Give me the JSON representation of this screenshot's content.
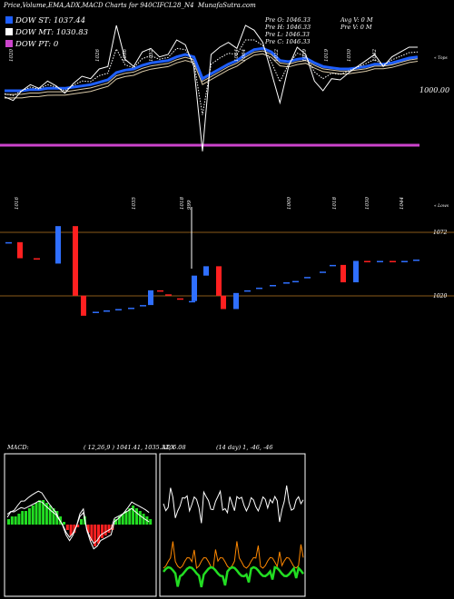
{
  "header": {
    "title": "Price,Volume,EMA,ADX,MACD Charts for 940CIFCL28_N4",
    "site": "MunafaSutra.com"
  },
  "legend": {
    "dow_st": "DOW ST: 1037.44",
    "dow_mt": "DOW MT: 1030.83",
    "dow_pt": "DOW PT: 0"
  },
  "prev_info": {
    "open": "Pre   O: 1046.33",
    "high": "Pre   H: 1046.33",
    "low": "Pre   L: 1046.33",
    "close": "Pre   C: 1046.33",
    "avg_v": "Avg V: 0   M",
    "pre_v": "Pre   V: 0   M"
  },
  "top_price_label": "1000.00",
  "top_right_tag": "« Tops",
  "bottom_right_tag": "« Lows",
  "top_labels": [
    "1020",
    "1026",
    "1036",
    "1052",
    "1064",
    "1064",
    "1022",
    "1019",
    "1019",
    "1030",
    "1042"
  ],
  "low_labels": [
    "1016",
    "1035",
    "1018",
    "999",
    "1000",
    "1018",
    "1030",
    "1044"
  ],
  "candle_levels": [
    "1072",
    "1020"
  ],
  "macd_panel": {
    "title": "MACD:",
    "params": "( 12,26,9 ) 1041.41, 1035.33, 6.08"
  },
  "adx_panel": {
    "title": "ADX",
    "params": "(14  day) 1, -46, -46"
  },
  "colors": {
    "ema_fast": "#1e5fff",
    "ema_lines": "#d9c9a8",
    "price": "#ffffff",
    "pt_line": "#cc44cc",
    "level_line": "#8a5a1a",
    "bull": "#2f6fff",
    "bear": "#ff2020",
    "macd_hist_pos": "#22dd22",
    "macd_hist_neg": "#ff2020",
    "adx_di_minus": "#22dd22",
    "adx_di_plus": "#ff8800"
  },
  "chart_data": [
    {
      "type": "line",
      "name": "price-ema-panel",
      "series": [
        {
          "name": "price",
          "values": [
            1005,
            1002,
            1010,
            1015,
            1012,
            1018,
            1014,
            1008,
            1016,
            1022,
            1020,
            1028,
            1030,
            1064,
            1036,
            1030,
            1042,
            1045,
            1038,
            1040,
            1052,
            1048,
            1030,
            960,
            1040,
            1046,
            1050,
            1045,
            1064,
            1060,
            1050,
            1025,
            1000,
            1030,
            1046,
            1040,
            1018,
            1010,
            1020,
            1019,
            1025,
            1030,
            1035,
            1040,
            1030,
            1038,
            1042,
            1046,
            1046
          ]
        },
        {
          "name": "ema_fast",
          "values": [
            1010,
            1010,
            1010,
            1011,
            1011,
            1012,
            1012,
            1012,
            1013,
            1014,
            1015,
            1017,
            1019,
            1025,
            1027,
            1028,
            1031,
            1033,
            1034,
            1035,
            1038,
            1040,
            1038,
            1020,
            1024,
            1028,
            1032,
            1035,
            1040,
            1044,
            1045,
            1042,
            1035,
            1034,
            1036,
            1037,
            1033,
            1030,
            1029,
            1028,
            1028,
            1029,
            1030,
            1032,
            1032,
            1033,
            1035,
            1037,
            1038
          ]
        }
      ]
    },
    {
      "type": "bar",
      "name": "macd-histogram",
      "values": [
        2,
        3,
        3,
        4,
        5,
        5,
        6,
        7,
        8,
        9,
        9,
        8,
        7,
        6,
        5,
        3,
        1,
        -2,
        -4,
        -3,
        -1,
        2,
        3,
        -3,
        -6,
        -8,
        -7,
        -5,
        -4,
        -3,
        -2,
        2,
        3,
        4,
        5,
        6,
        7,
        6,
        5,
        4,
        3,
        2
      ]
    }
  ]
}
